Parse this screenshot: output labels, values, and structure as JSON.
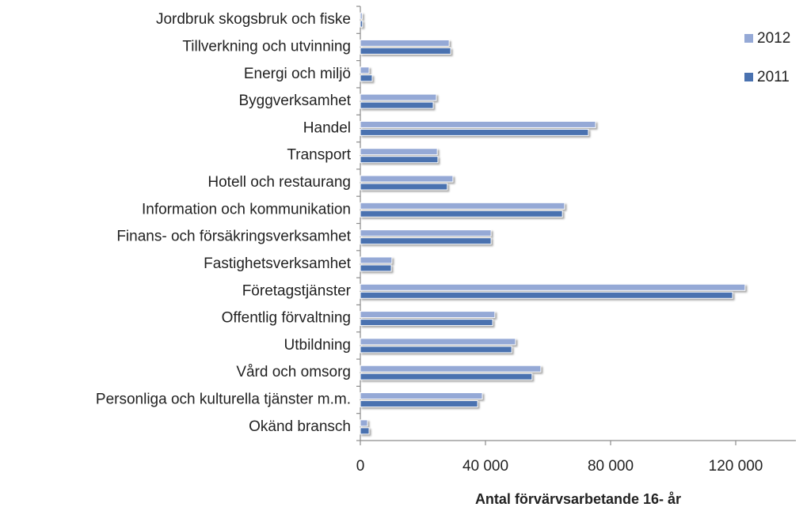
{
  "chart_data": {
    "type": "hbar",
    "categories": [
      "Jordbruk skogsbruk och fiske",
      "Tillverkning och utvinning",
      "Energi och miljö",
      "Byggverksamhet",
      "Handel",
      "Transport",
      "Hotell och restaurang",
      "Information och kommunikation",
      "Finans- och försäkringsverksamhet",
      "Fastighetsverksamhet",
      "Företagstjänster",
      "Offentlig förvaltning",
      "Utbildning",
      "Vård och omsorg",
      "Personliga och kulturella tjänster m.m.",
      "Okänd bransch"
    ],
    "series": [
      {
        "name": "2012",
        "color": "#95a9d6",
        "values": [
          600,
          28400,
          2800,
          24300,
          75200,
          24600,
          29600,
          65300,
          41800,
          10100,
          123000,
          43000,
          49600,
          57700,
          39000,
          2300
        ]
      },
      {
        "name": "2011",
        "color": "#4a72b0",
        "values": [
          700,
          28900,
          3800,
          23300,
          72900,
          24800,
          27800,
          64600,
          41800,
          9900,
          119000,
          42300,
          48400,
          54900,
          37500,
          2800
        ]
      }
    ],
    "xlim": [
      0,
      140000
    ],
    "xticks": [
      0,
      {
        "value": 40000,
        "label": "40 000"
      },
      {
        "value": 80000,
        "label": "80 000"
      },
      {
        "value": 120000,
        "label": "120 000"
      }
    ],
    "xlabel": "Antal förvärvsarbetande 16- år",
    "legend": "right"
  }
}
